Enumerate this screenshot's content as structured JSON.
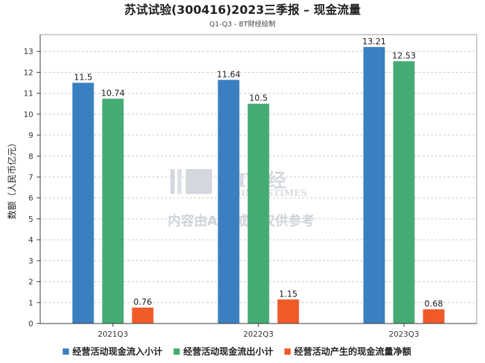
{
  "chart_data": {
    "type": "bar",
    "title": "苏试试验(300416)2023三季报 – 现金流量",
    "subtitle": "Q1-Q3 - BT财经绘制",
    "ylabel": "数额（人民币亿元）",
    "xlabel": "",
    "ylim": [
      0,
      13.8
    ],
    "yticks": [
      0,
      1,
      2,
      3,
      4,
      5,
      6,
      7,
      8,
      9,
      10,
      11,
      12,
      13
    ],
    "categories": [
      "2021Q3",
      "2022Q3",
      "2023Q3"
    ],
    "series": [
      {
        "name": "经营活动现金流入小计",
        "color": "#3a7fc0",
        "values": [
          11.5,
          11.64,
          13.21
        ],
        "labels": [
          "11.5",
          "11.64",
          "13.21"
        ]
      },
      {
        "name": "经营活动现金流出小计",
        "color": "#45ab74",
        "values": [
          10.74,
          10.5,
          12.53
        ],
        "labels": [
          "10.74",
          "10.5",
          "12.53"
        ]
      },
      {
        "name": "经营活动产生的现金流量净额",
        "color": "#f05a28",
        "values": [
          0.76,
          1.15,
          0.68
        ],
        "labels": [
          "0.76",
          "1.15",
          "0.68"
        ]
      }
    ],
    "grid": true,
    "legend": "bottom"
  },
  "watermark": {
    "brand": "BT财经",
    "brand_en": "BUSINESSTIMES",
    "notice": "内容由AI生成，仅供参考"
  }
}
